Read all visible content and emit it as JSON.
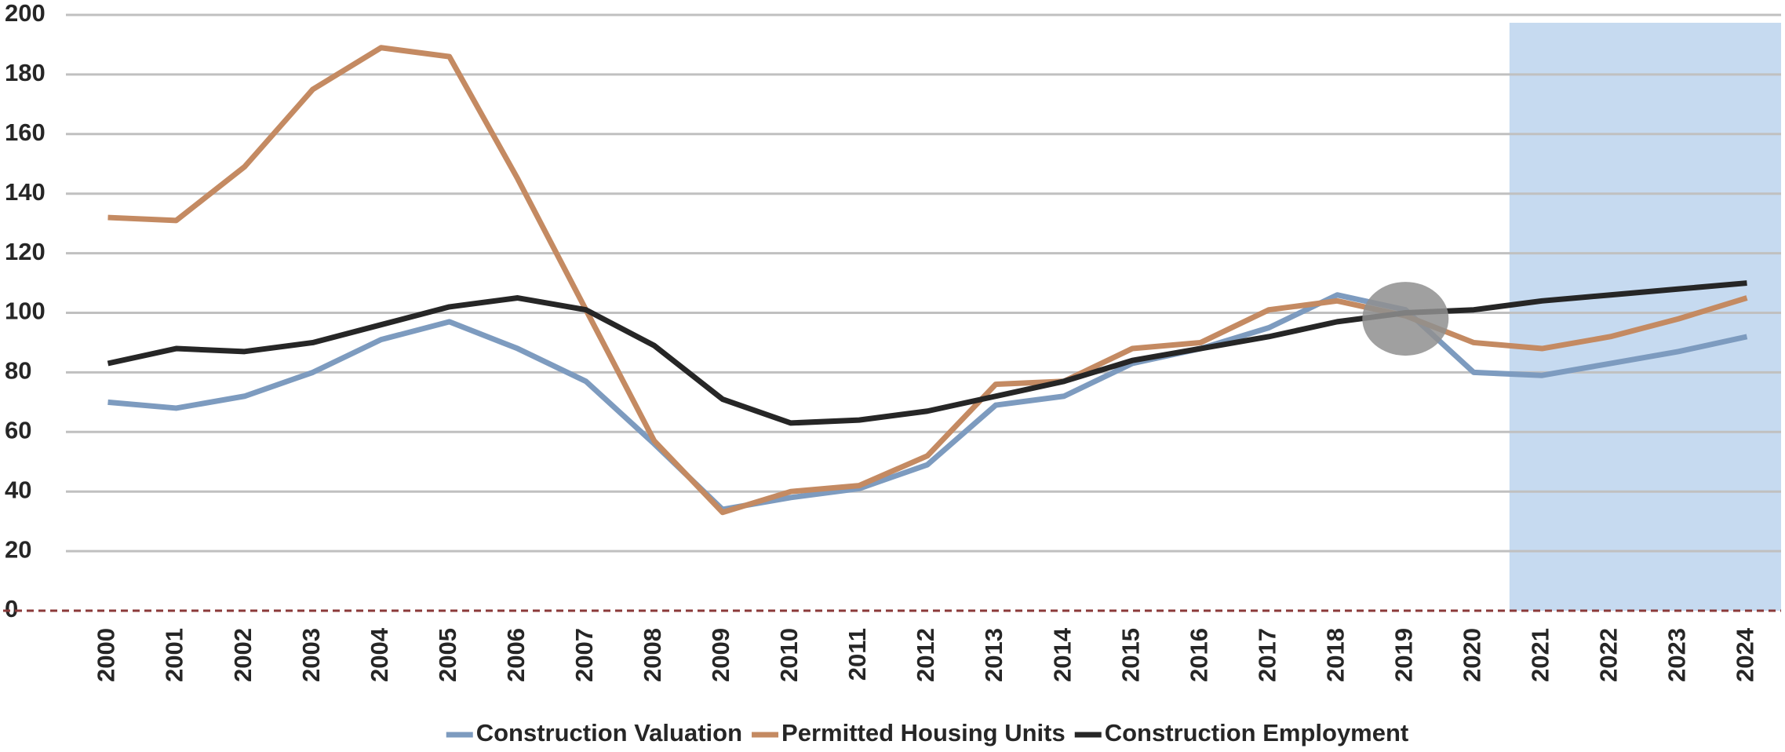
{
  "chart_data": {
    "type": "line",
    "categories": [
      "2000",
      "2001",
      "2002",
      "2003",
      "2004",
      "2005",
      "2006",
      "2007",
      "2008",
      "2009",
      "2010",
      "2011",
      "2012",
      "2013",
      "2014",
      "2015",
      "2016",
      "2017",
      "2018",
      "2019",
      "2020",
      "2021",
      "2022",
      "2023",
      "2024"
    ],
    "series": [
      {
        "name": "Construction Valuation",
        "color": "#7d9bbf",
        "values": [
          70,
          68,
          72,
          80,
          91,
          97,
          88,
          77,
          56,
          34,
          38,
          41,
          49,
          69,
          72,
          83,
          88,
          95,
          106,
          101,
          80,
          79,
          83,
          87,
          92
        ]
      },
      {
        "name": "Permitted Housing Units",
        "color": "#c48a62",
        "values": [
          132,
          131,
          149,
          175,
          189,
          186,
          145,
          101,
          57,
          33,
          40,
          42,
          52,
          76,
          77,
          88,
          90,
          101,
          104,
          99,
          90,
          88,
          92,
          98,
          105
        ]
      },
      {
        "name": "Construction Employment",
        "color": "#262626",
        "values": [
          83,
          88,
          87,
          90,
          96,
          102,
          105,
          101,
          89,
          71,
          63,
          64,
          67,
          72,
          77,
          84,
          88,
          92,
          97,
          100,
          101,
          104,
          106,
          108,
          110
        ]
      }
    ],
    "ylim": [
      0,
      200
    ],
    "yticks": [
      0,
      20,
      40,
      60,
      80,
      100,
      120,
      140,
      160,
      180,
      200
    ],
    "grid": true,
    "highlight": {
      "from": "2021",
      "color": "#c6daf0"
    },
    "annotation_circle": {
      "x": "2019",
      "y": 98,
      "color": "#8f8f8f"
    },
    "zero_line_color": "#8b3a3a",
    "legend": "bottom"
  }
}
